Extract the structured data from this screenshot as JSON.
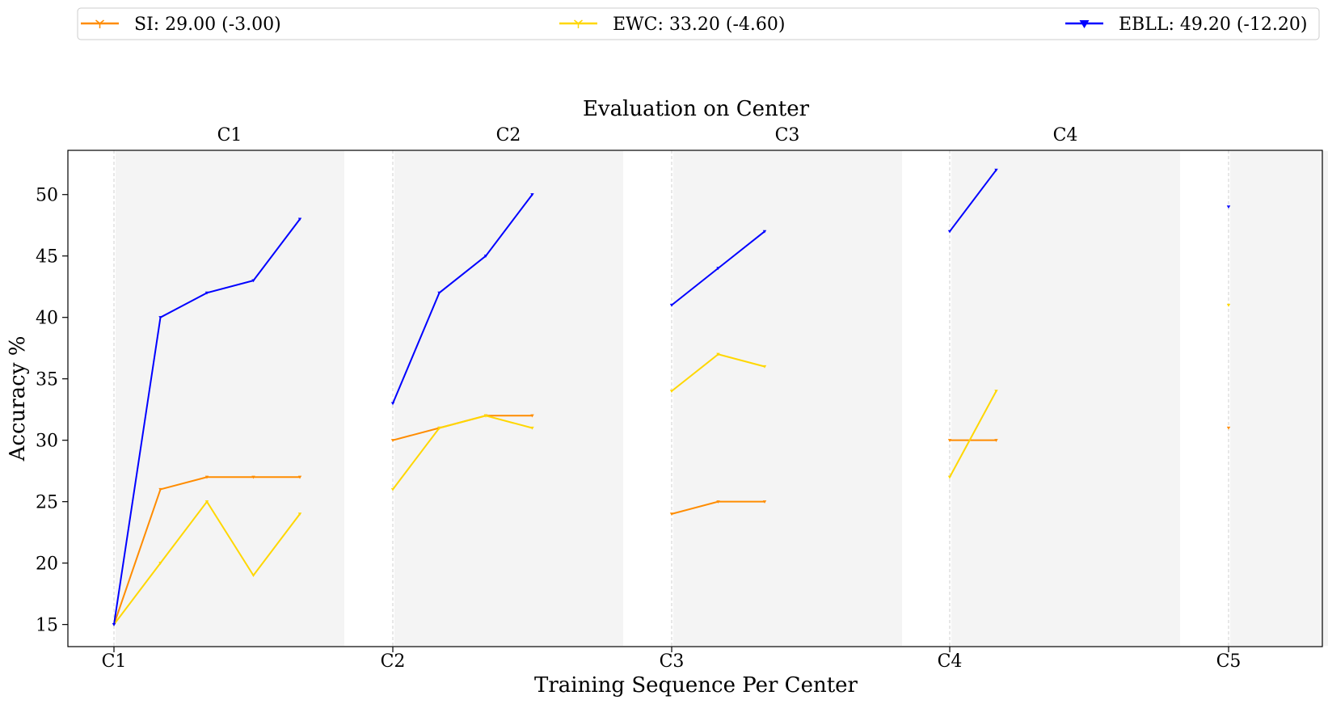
{
  "chart_data": {
    "type": "line",
    "top_title": "Evaluation on Center",
    "xlabel": "Training Sequence Per Center",
    "ylabel": "Accuracy %",
    "ylim": [
      13.2,
      53.6
    ],
    "yticks": [
      15,
      20,
      25,
      30,
      35,
      40,
      45,
      50
    ],
    "x_ticks": [
      "C1",
      "C2",
      "C3",
      "C4",
      "C5"
    ],
    "centers": [
      "C1",
      "C2",
      "C3",
      "C4",
      "C5"
    ],
    "grid": false,
    "legend_placement": "top",
    "legend": [
      {
        "label": "SI: 29.00 (-3.00)",
        "color": "#ff8c00",
        "marker": "tri_down"
      },
      {
        "label": "EWC: 33.20 (-4.60)",
        "color": "#ffd700",
        "marker": "tri_down"
      },
      {
        "label": "EBLL: 49.20 (-12.20)",
        "color": "#0000ff",
        "marker": "triangle_down"
      }
    ],
    "series": [
      {
        "name": "SI",
        "color": "#ff8c00",
        "panels": [
          {
            "center": "C1",
            "values": [
              15,
              26,
              27,
              27,
              27
            ]
          },
          {
            "center": "C2",
            "values": [
              30,
              31,
              32,
              32
            ]
          },
          {
            "center": "C3",
            "values": [
              24,
              25,
              25
            ]
          },
          {
            "center": "C4",
            "values": [
              30,
              30
            ]
          },
          {
            "center": "C5",
            "values": [
              31
            ]
          }
        ]
      },
      {
        "name": "EWC",
        "color": "#ffd700",
        "panels": [
          {
            "center": "C1",
            "values": [
              15,
              20,
              25,
              19,
              24
            ]
          },
          {
            "center": "C2",
            "values": [
              26,
              31,
              32,
              31
            ]
          },
          {
            "center": "C3",
            "values": [
              34,
              37,
              36
            ]
          },
          {
            "center": "C4",
            "values": [
              27,
              34
            ]
          },
          {
            "center": "C5",
            "values": [
              41
            ]
          }
        ]
      },
      {
        "name": "EBLL",
        "color": "#0000ff",
        "panels": [
          {
            "center": "C1",
            "values": [
              15,
              40,
              42,
              43,
              48
            ]
          },
          {
            "center": "C2",
            "values": [
              33,
              42,
              45,
              50
            ]
          },
          {
            "center": "C3",
            "values": [
              41,
              44,
              47
            ]
          },
          {
            "center": "C4",
            "values": [
              47,
              52
            ]
          },
          {
            "center": "C5",
            "values": [
              49
            ]
          }
        ]
      }
    ]
  }
}
